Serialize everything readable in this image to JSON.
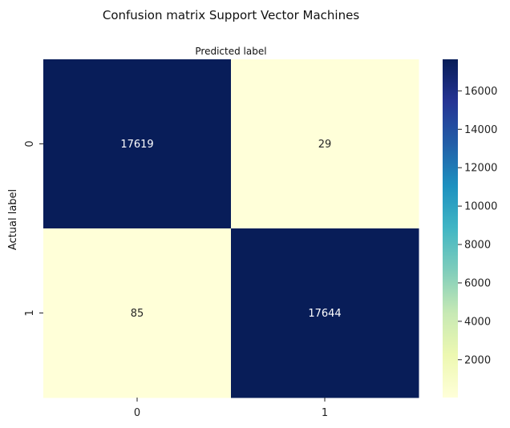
{
  "chart_data": {
    "type": "heatmap",
    "title": "Confusion matrix Support Vector Machines",
    "xlabel": "Predicted label",
    "ylabel": "Actual label",
    "x_categories": [
      "0",
      "1"
    ],
    "y_categories": [
      "0",
      "1"
    ],
    "values": [
      [
        17619,
        29
      ],
      [
        85,
        17644
      ]
    ],
    "colormap": "YlGnBu",
    "colorbar": {
      "min": 29,
      "max": 17644,
      "ticks": [
        2000,
        4000,
        6000,
        8000,
        10000,
        12000,
        14000,
        16000
      ]
    },
    "xaxis_position": "top label, bottom ticks",
    "grid": false
  }
}
